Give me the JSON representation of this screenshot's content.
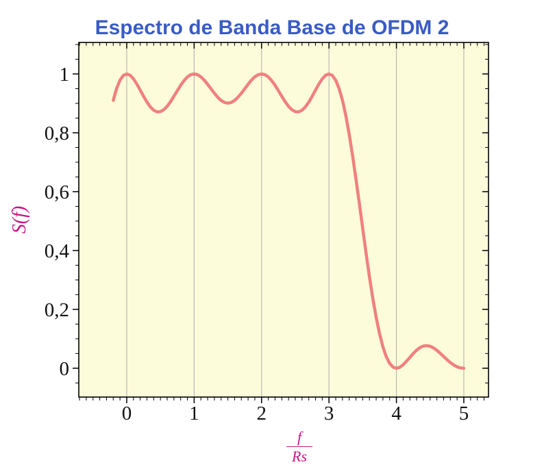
{
  "title": {
    "text": "Espectro de Banda Base de OFDM 2"
  },
  "axes": {
    "y_label": "S(f)",
    "x_label_numerator": "f",
    "x_label_denominator": "Rs"
  },
  "colors": {
    "title": "#3A5BC4",
    "axis_label": "#C71585",
    "curve": "#F08080",
    "plot_bg": "#FCFCDA",
    "grid": "#B3B3B3",
    "tick_text": "#111111",
    "frame": "#000000"
  },
  "chart_data": {
    "type": "line",
    "title": "Espectro de Banda Base de OFDM 2",
    "xlabel": "f/Rs",
    "ylabel": "S(f)",
    "xlim": [
      -0.711,
      5.366
    ],
    "ylim": [
      -0.098,
      1.107
    ],
    "grid": "x-major-only",
    "legend": "none",
    "x_ticks": [
      {
        "v": 0,
        "label": "0"
      },
      {
        "v": 1,
        "label": "1"
      },
      {
        "v": 2,
        "label": "2"
      },
      {
        "v": 3,
        "label": "3"
      },
      {
        "v": 4,
        "label": "4"
      },
      {
        "v": 5,
        "label": "5"
      }
    ],
    "y_ticks": [
      {
        "v": 0.0,
        "label": "0"
      },
      {
        "v": 0.2,
        "label": "0,2"
      },
      {
        "v": 0.4,
        "label": "0,4"
      },
      {
        "v": 0.6,
        "label": "0,6"
      },
      {
        "v": 0.8,
        "label": "0,8"
      },
      {
        "v": 1.0,
        "label": "1"
      }
    ],
    "x_minor_step": 0.1,
    "y_minor_step": 0.05,
    "x_start": -0.2,
    "x_step": 0.05,
    "y": [
      0.9101,
      0.9505,
      0.9787,
      0.9949,
      1.0,
      0.9955,
      0.9833,
      0.9657,
      0.9451,
      0.9239,
      0.9042,
      0.888,
      0.8767,
      0.8712,
      0.8718,
      0.8783,
      0.89,
      0.9057,
      0.924,
      0.9431,
      0.9614,
      0.9773,
      0.9897,
      0.9974,
      1.0,
      0.9975,
      0.9902,
      0.9789,
      0.9649,
      0.9496,
      0.9344,
      0.9207,
      0.9099,
      0.903,
      0.9006,
      0.903,
      0.9099,
      0.9207,
      0.9344,
      0.9496,
      0.9649,
      0.9789,
      0.9902,
      0.9975,
      1.0,
      0.9974,
      0.9897,
      0.9773,
      0.9614,
      0.9431,
      0.924,
      0.9057,
      0.89,
      0.8783,
      0.8718,
      0.8712,
      0.8767,
      0.888,
      0.9042,
      0.9239,
      0.9451,
      0.9657,
      0.9833,
      0.9955,
      1.0,
      0.9949,
      0.9787,
      0.9505,
      0.9101,
      0.8578,
      0.7947,
      0.7225,
      0.6434,
      0.5599,
      0.4748,
      0.3909,
      0.311,
      0.2374,
      0.1722,
      0.1169,
      0.0724,
      0.039,
      0.0164,
      0.0038,
      0.0,
      0.0033,
      0.0118,
      0.0236,
      0.0369,
      0.05,
      0.0615,
      0.0701,
      0.0753,
      0.0768,
      0.0745,
      0.069,
      0.0608,
      0.0508,
      0.0399,
      0.0291,
      0.0192,
      0.011,
      0.0049,
      0.0012,
      0.0
    ]
  }
}
